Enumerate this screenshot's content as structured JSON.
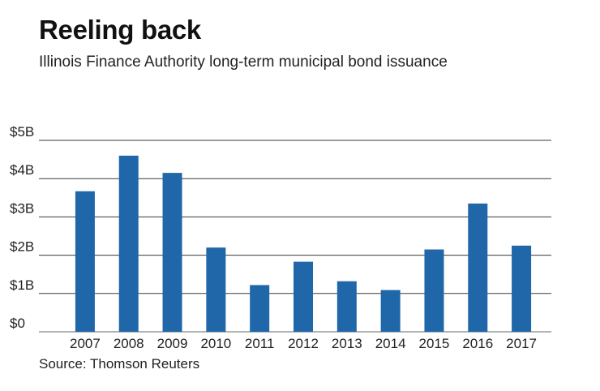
{
  "header": {
    "title": "Reeling back",
    "subtitle": "Illinois Finance Authority long-term municipal bond issuance"
  },
  "footer": {
    "source": "Source: Thomson Reuters"
  },
  "colors": {
    "bar": "#1f67a8",
    "grid": "#3a3a3a",
    "baseline": "#9a9a9a"
  },
  "chart_data": {
    "type": "bar",
    "title": "Reeling back",
    "subtitle": "Illinois Finance Authority long-term municipal bond issuance",
    "xlabel": "",
    "ylabel": "",
    "unit": "billions of dollars",
    "categories": [
      "2007",
      "2008",
      "2009",
      "2010",
      "2011",
      "2012",
      "2013",
      "2014",
      "2015",
      "2016",
      "2017"
    ],
    "values": [
      3.67,
      4.6,
      4.15,
      2.2,
      1.22,
      1.83,
      1.32,
      1.09,
      2.15,
      3.35,
      2.25
    ],
    "ylim": [
      0,
      5
    ],
    "yticks": [
      0,
      1,
      2,
      3,
      4,
      5
    ],
    "ytick_labels": [
      "$0",
      "$1B",
      "$2B",
      "$3B",
      "$4B",
      "$5B"
    ],
    "grid": true,
    "legend": "none"
  }
}
